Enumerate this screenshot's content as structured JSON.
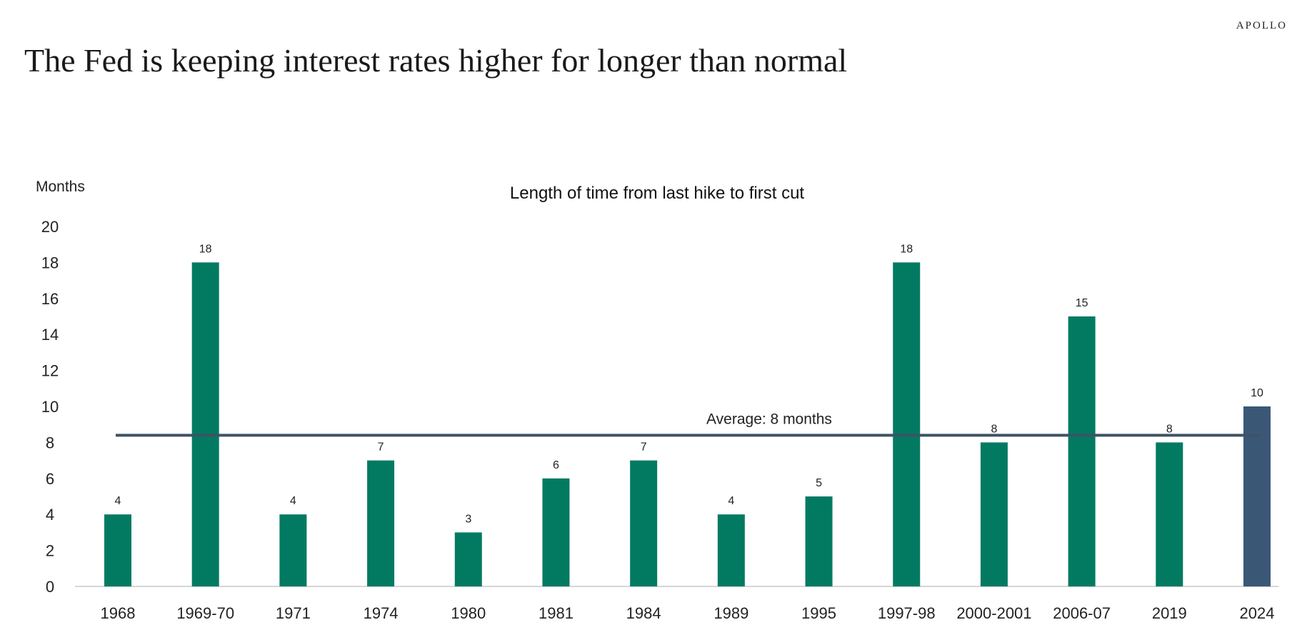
{
  "brand": "APOLLO",
  "headline": "The Fed is keeping interest rates higher for longer than normal",
  "colors": {
    "bar": "#027A62",
    "highlight_bar": "#3A5876",
    "average_line": "#3E5366",
    "axis_line": "#C9C9C9"
  },
  "chart_data": {
    "type": "bar",
    "title": "Length of time from last hike to first cut",
    "xlabel": "",
    "ylabel": "Months",
    "ylim": [
      0,
      20
    ],
    "yticks": [
      0,
      2,
      4,
      6,
      8,
      10,
      12,
      14,
      16,
      18,
      20
    ],
    "grid": false,
    "legend": "none",
    "categories": [
      "1968",
      "1969-70",
      "1971",
      "1974",
      "1980",
      "1981",
      "1984",
      "1989",
      "1995",
      "1997-98",
      "2000-2001",
      "2006-07",
      "2019",
      "2024"
    ],
    "values": [
      4,
      18,
      4,
      7,
      3,
      6,
      7,
      4,
      5,
      18,
      8,
      15,
      8,
      10
    ],
    "data_labels": [
      "4",
      "18",
      "4",
      "7",
      "3",
      "6",
      "7",
      "4",
      "5",
      "18",
      "8",
      "15",
      "8",
      "10"
    ],
    "highlighted_category": "2024",
    "average": {
      "value": 8.4,
      "label": "Average: 8 months"
    }
  }
}
